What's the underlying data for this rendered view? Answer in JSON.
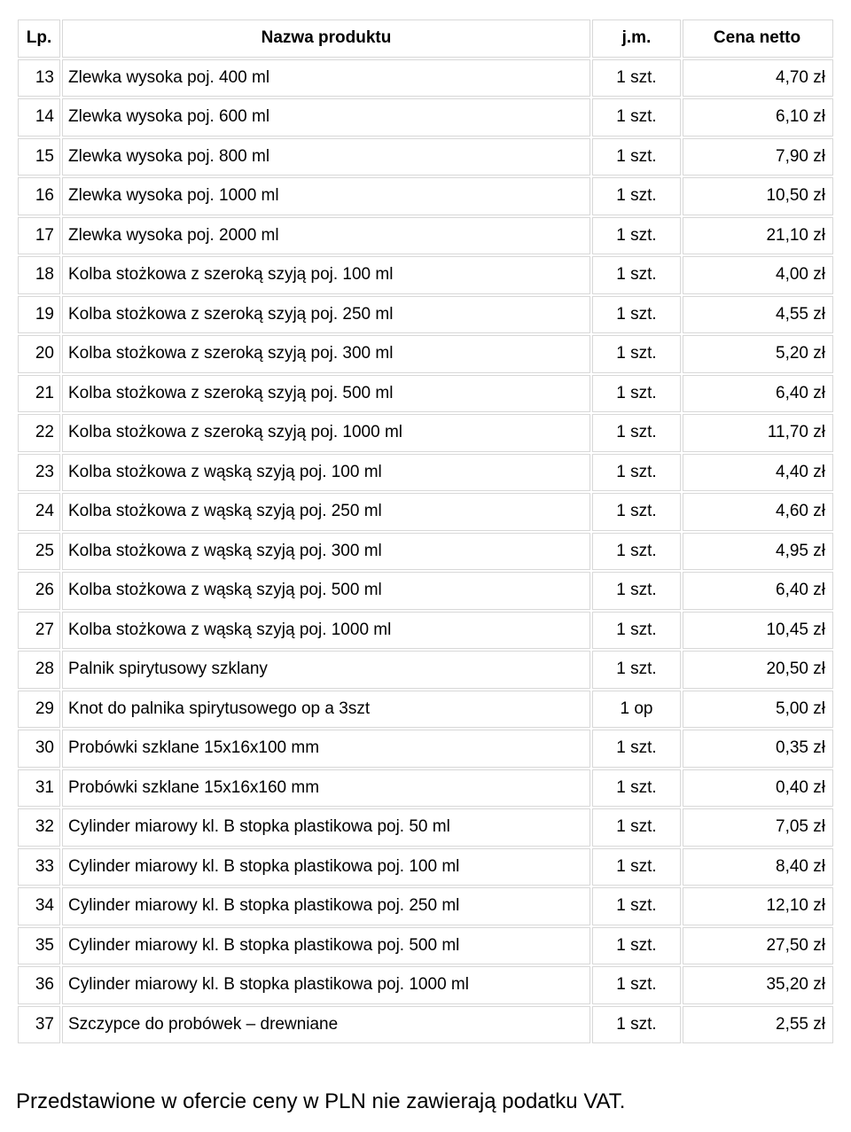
{
  "table": {
    "columns": [
      {
        "key": "lp",
        "label": "Lp.",
        "class": "col-lp"
      },
      {
        "key": "name",
        "label": "Nazwa produktu",
        "class": "col-name"
      },
      {
        "key": "jm",
        "label": "j.m.",
        "class": "col-jm"
      },
      {
        "key": "cena",
        "label": "Cena netto",
        "class": "col-cena"
      }
    ],
    "rows": [
      {
        "lp": "13",
        "name": "Zlewka wysoka poj. 400 ml",
        "jm": "1 szt.",
        "cena": "4,70 zł"
      },
      {
        "lp": "14",
        "name": "Zlewka wysoka poj. 600 ml",
        "jm": "1 szt.",
        "cena": "6,10 zł"
      },
      {
        "lp": "15",
        "name": "Zlewka wysoka poj. 800 ml",
        "jm": "1 szt.",
        "cena": "7,90 zł"
      },
      {
        "lp": "16",
        "name": "Zlewka wysoka poj. 1000 ml",
        "jm": "1 szt.",
        "cena": "10,50 zł"
      },
      {
        "lp": "17",
        "name": "Zlewka wysoka poj. 2000 ml",
        "jm": "1 szt.",
        "cena": "21,10 zł"
      },
      {
        "lp": "18",
        "name": "Kolba stożkowa z szeroką szyją poj. 100 ml",
        "jm": "1 szt.",
        "cena": "4,00 zł"
      },
      {
        "lp": "19",
        "name": "Kolba stożkowa z szeroką szyją poj. 250 ml",
        "jm": "1 szt.",
        "cena": "4,55 zł"
      },
      {
        "lp": "20",
        "name": "Kolba stożkowa z szeroką szyją poj. 300 ml",
        "jm": "1 szt.",
        "cena": "5,20 zł"
      },
      {
        "lp": "21",
        "name": "Kolba stożkowa z szeroką szyją poj. 500 ml",
        "jm": "1 szt.",
        "cena": "6,40 zł"
      },
      {
        "lp": "22",
        "name": "Kolba stożkowa z szeroką szyją poj. 1000 ml",
        "jm": "1 szt.",
        "cena": "11,70 zł"
      },
      {
        "lp": "23",
        "name": "Kolba stożkowa z wąską szyją poj. 100 ml",
        "jm": "1 szt.",
        "cena": "4,40 zł"
      },
      {
        "lp": "24",
        "name": "Kolba stożkowa z wąską szyją poj. 250 ml",
        "jm": "1 szt.",
        "cena": "4,60 zł"
      },
      {
        "lp": "25",
        "name": "Kolba stożkowa z wąską szyją poj. 300 ml",
        "jm": "1 szt.",
        "cena": "4,95 zł"
      },
      {
        "lp": "26",
        "name": "Kolba stożkowa z wąską szyją poj. 500 ml",
        "jm": "1 szt.",
        "cena": "6,40 zł"
      },
      {
        "lp": "27",
        "name": "Kolba stożkowa z wąską szyją poj. 1000 ml",
        "jm": "1 szt.",
        "cena": "10,45 zł"
      },
      {
        "lp": "28",
        "name": "Palnik spirytusowy szklany",
        "jm": "1 szt.",
        "cena": "20,50 zł"
      },
      {
        "lp": "29",
        "name": "Knot do palnika spirytusowego op a 3szt",
        "jm": "1 op",
        "cena": "5,00 zł"
      },
      {
        "lp": "30",
        "name": "Probówki szklane 15x16x100 mm",
        "jm": "1 szt.",
        "cena": "0,35 zł"
      },
      {
        "lp": "31",
        "name": "Probówki szklane 15x16x160 mm",
        "jm": "1 szt.",
        "cena": "0,40 zł"
      },
      {
        "lp": "32",
        "name": "Cylinder miarowy kl. B stopka plastikowa poj. 50 ml",
        "jm": "1 szt.",
        "cena": "7,05 zł"
      },
      {
        "lp": "33",
        "name": "Cylinder miarowy kl. B stopka plastikowa poj. 100 ml",
        "jm": "1 szt.",
        "cena": "8,40 zł"
      },
      {
        "lp": "34",
        "name": "Cylinder miarowy kl. B stopka plastikowa poj. 250 ml",
        "jm": "1 szt.",
        "cena": "12,10 zł"
      },
      {
        "lp": "35",
        "name": "Cylinder miarowy kl. B stopka plastikowa poj. 500 ml",
        "jm": "1 szt.",
        "cena": "27,50 zł"
      },
      {
        "lp": "36",
        "name": "Cylinder miarowy kl. B stopka plastikowa poj. 1000 ml",
        "jm": "1 szt.",
        "cena": "35,20 zł"
      },
      {
        "lp": "37",
        "name": "Szczypce do probówek – drewniane",
        "jm": "1 szt.",
        "cena": "2,55 zł"
      }
    ]
  },
  "footer": {
    "text": "Przedstawione w ofercie ceny w PLN nie zawierają podatku VAT."
  }
}
